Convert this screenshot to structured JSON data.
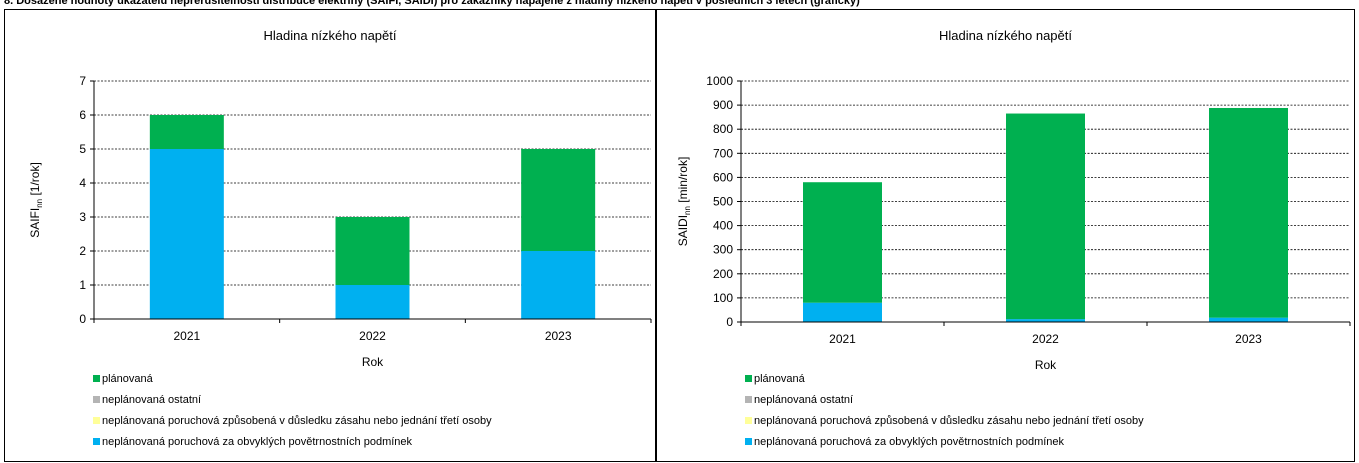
{
  "header": {
    "text": "8. Dosažené hodnoty ukazatelů nepřerušitelnosti distribuce elektřiny (SAIFI, SAIDI) pro zákazníky napájené z hladiny nízkého napětí v posledních 3 letech (grafický)"
  },
  "colors": {
    "planned": "#00b050",
    "unplanned_other": "#b4b4b4",
    "third_party": "#ffff99",
    "weather": "#00b0f0"
  },
  "legend": [
    {
      "label": "plánovaná",
      "color_key": "planned"
    },
    {
      "label": "neplánovaná ostatní",
      "color_key": "unplanned_other"
    },
    {
      "label": "neplánovaná poruchová způsobená v důsledku zásahu nebo jednání třetí osoby",
      "color_key": "third_party"
    },
    {
      "label": "neplánovaná poruchová za obvyklých povětrnostních podmínek",
      "color_key": "weather"
    }
  ],
  "chart_data": [
    {
      "type": "bar",
      "stacked": true,
      "title": "Hladina nízkého napětí",
      "xlabel": "Rok",
      "ylabel": "SAIFI",
      "ylabel_sub": "nn",
      "ylabel_unit": " [1/rok]",
      "categories": [
        "2021",
        "2022",
        "2023"
      ],
      "ylim": [
        0,
        7
      ],
      "yticks": [
        0,
        1,
        2,
        3,
        4,
        5,
        6,
        7
      ],
      "grid": true,
      "legend_position": "bottom",
      "series": [
        {
          "name": "neplánovaná poruchová za obvyklých povětrnostních podmínek",
          "color": "#00b0f0",
          "values": [
            5,
            1,
            2
          ]
        },
        {
          "name": "neplánovaná poruchová způsobená v důsledku zásahu nebo jednání třetí osoby",
          "color": "#ffff99",
          "values": [
            0,
            0,
            0
          ]
        },
        {
          "name": "neplánovaná ostatní",
          "color": "#b4b4b4",
          "values": [
            0,
            0,
            0
          ]
        },
        {
          "name": "plánovaná",
          "color": "#00b050",
          "values": [
            1,
            2,
            3
          ]
        }
      ]
    },
    {
      "type": "bar",
      "stacked": true,
      "title": "Hladina nízkého napětí",
      "xlabel": "Rok",
      "ylabel": "SAIDI",
      "ylabel_sub": "nn",
      "ylabel_unit": " [min/rok]",
      "categories": [
        "2021",
        "2022",
        "2023"
      ],
      "ylim": [
        0,
        1000
      ],
      "yticks": [
        0,
        100,
        200,
        300,
        400,
        500,
        600,
        700,
        800,
        900,
        1000
      ],
      "grid": true,
      "legend_position": "bottom",
      "series": [
        {
          "name": "neplánovaná poruchová za obvyklých povětrnostních podmínek",
          "color": "#00b0f0",
          "values": [
            80,
            12,
            18
          ]
        },
        {
          "name": "neplánovaná poruchová způsobená v důsledku zásahu nebo jednání třetí osoby",
          "color": "#ffff99",
          "values": [
            0,
            0,
            0
          ]
        },
        {
          "name": "neplánovaná ostatní",
          "color": "#b4b4b4",
          "values": [
            0,
            0,
            0
          ]
        },
        {
          "name": "plánovaná",
          "color": "#00b050",
          "values": [
            500,
            853,
            870
          ]
        }
      ]
    }
  ]
}
